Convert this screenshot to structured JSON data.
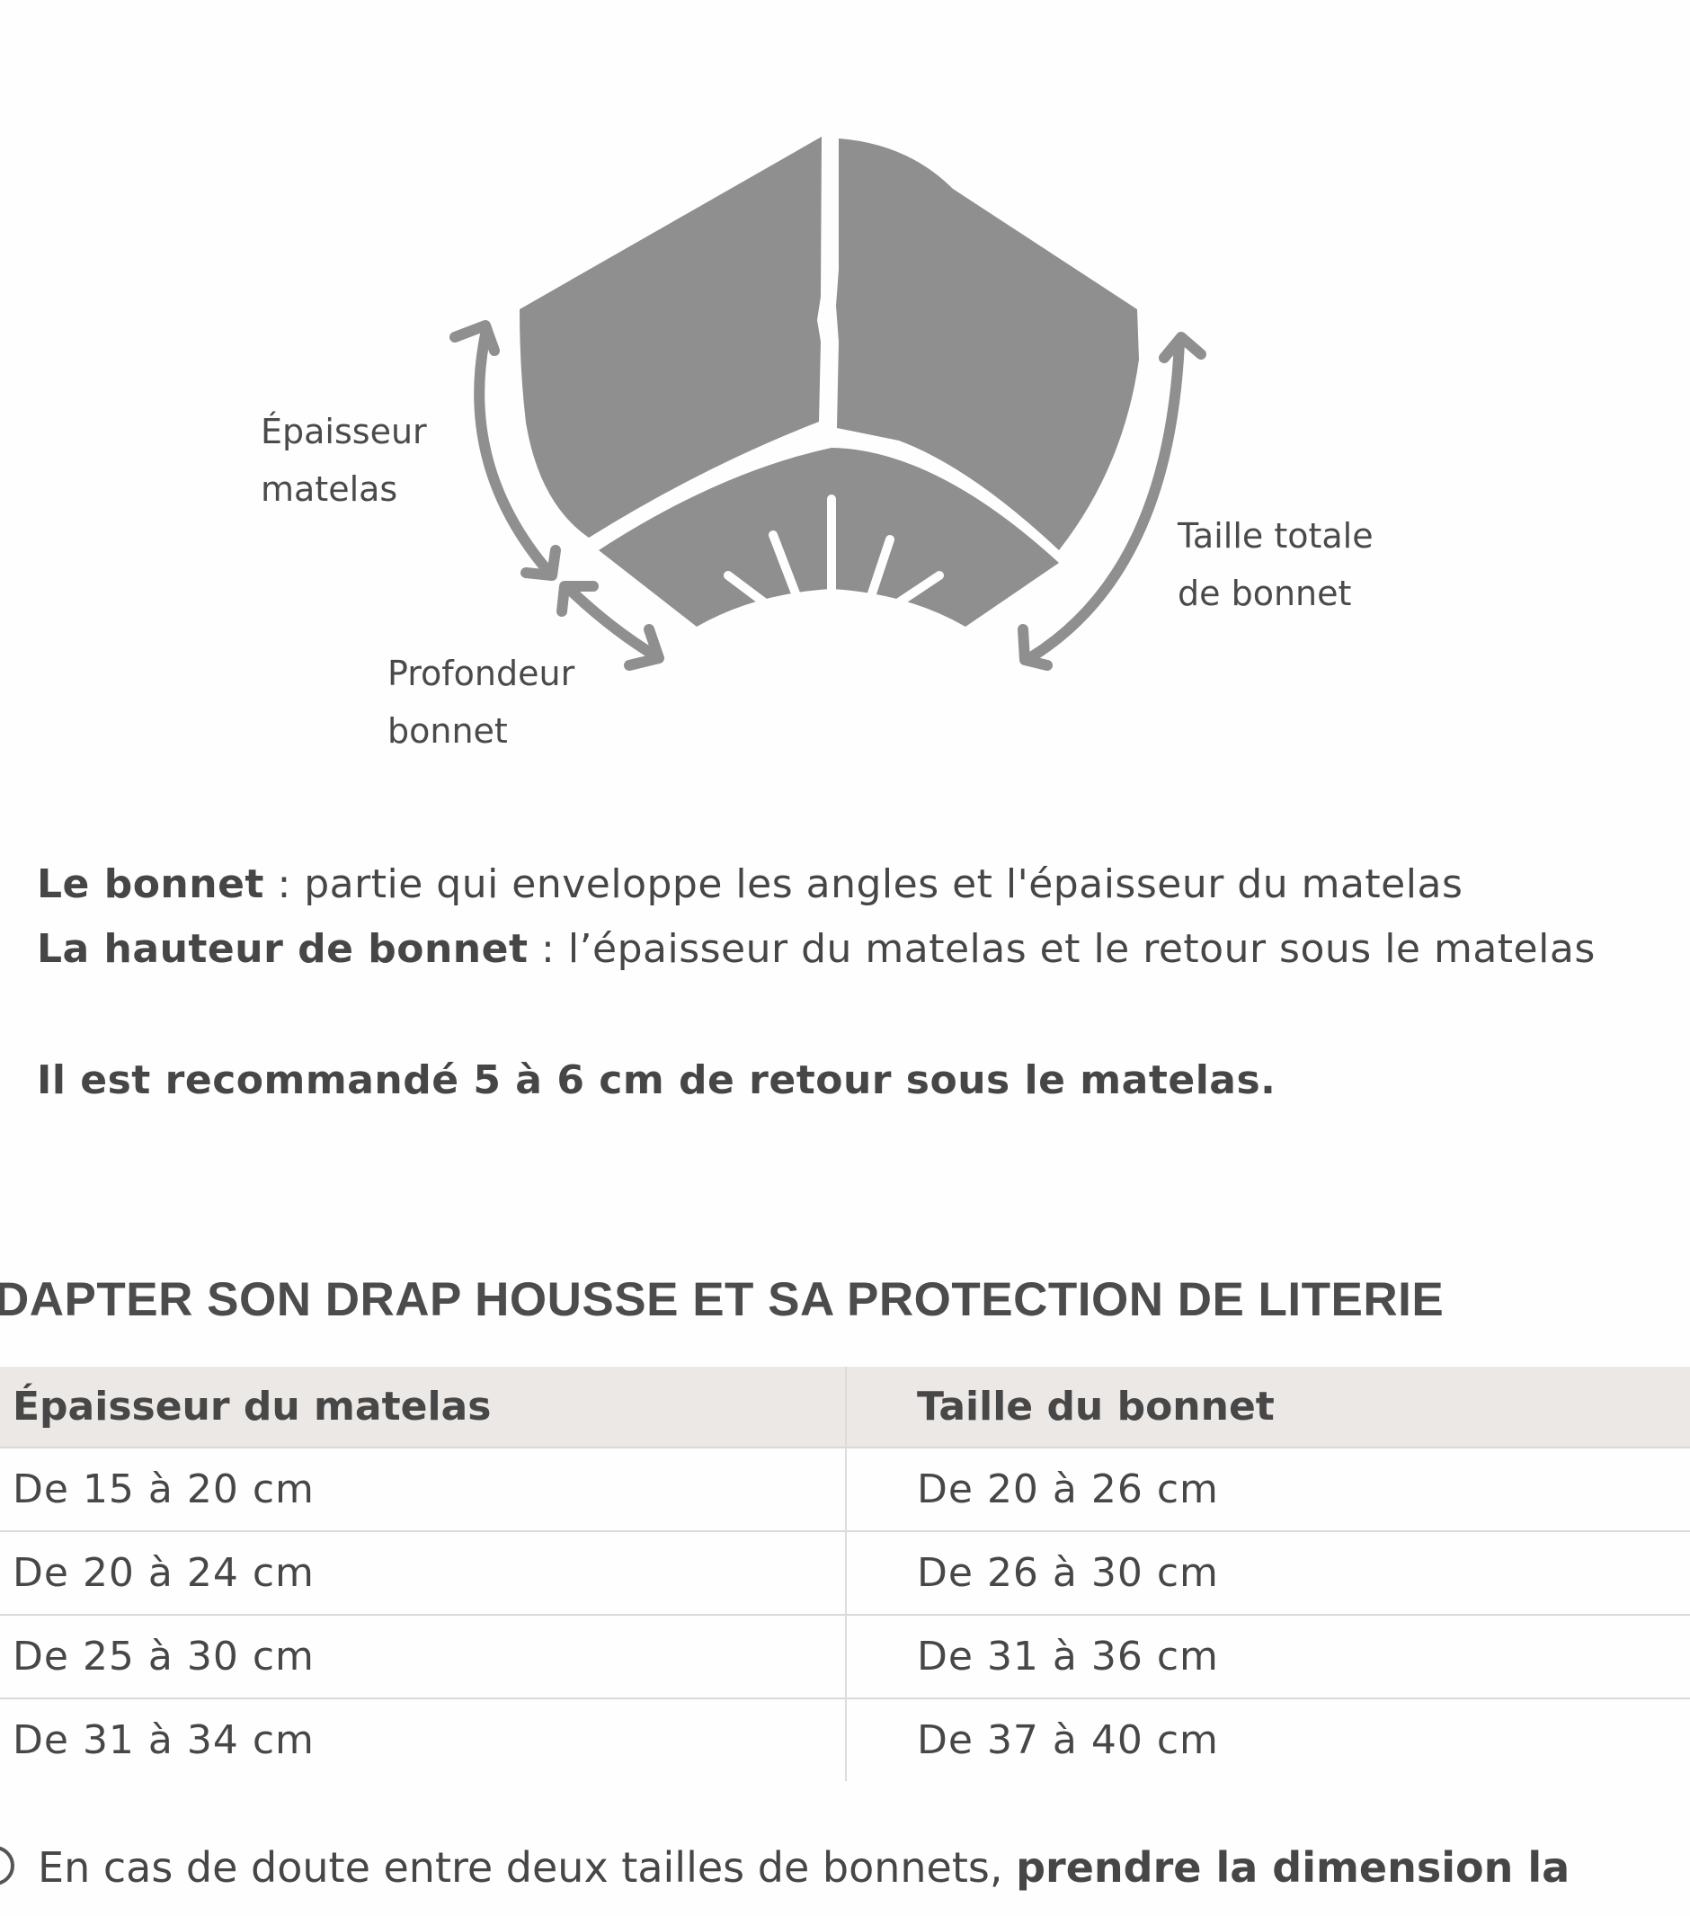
{
  "diagram": {
    "labels": {
      "thickness": [
        "Épaisseur",
        "matelas"
      ],
      "total": [
        "Taille totale",
        "de bonnet"
      ],
      "depth": [
        "Profondeur",
        "bonnet"
      ]
    },
    "fill_color": "#8f8f8f"
  },
  "definitions": [
    {
      "term": "Le bonnet",
      "text": " : partie qui enveloppe les angles et l'épaisseur du matelas"
    },
    {
      "term": "La hauteur de bonnet",
      "text": " : l’épaisseur du matelas et le retour sous le matelas"
    }
  ],
  "recommendation": "Il est recommandé 5 à 6 cm de retour sous le matelas.",
  "section_title": "DAPTER SON DRAP HOUSSE ET SA PROTECTION DE LITERIE",
  "table": {
    "headers": [
      "Épaisseur du matelas",
      "Taille du bonnet"
    ],
    "rows": [
      [
        "De 15 à 20 cm",
        "De 20 à 26 cm"
      ],
      [
        "De 20 à 24 cm",
        "De 26 à 30 cm"
      ],
      [
        "De 25 à 30 cm",
        "De 31 à 36 cm"
      ],
      [
        "De 31 à 34 cm",
        "De 37 à 40 cm"
      ]
    ],
    "header_bg": "#ebe8e5"
  },
  "note": {
    "icon": "info-icon",
    "text": "En cas de doute entre deux tailles de bonnets, ",
    "bold": "prendre la dimension la"
  }
}
